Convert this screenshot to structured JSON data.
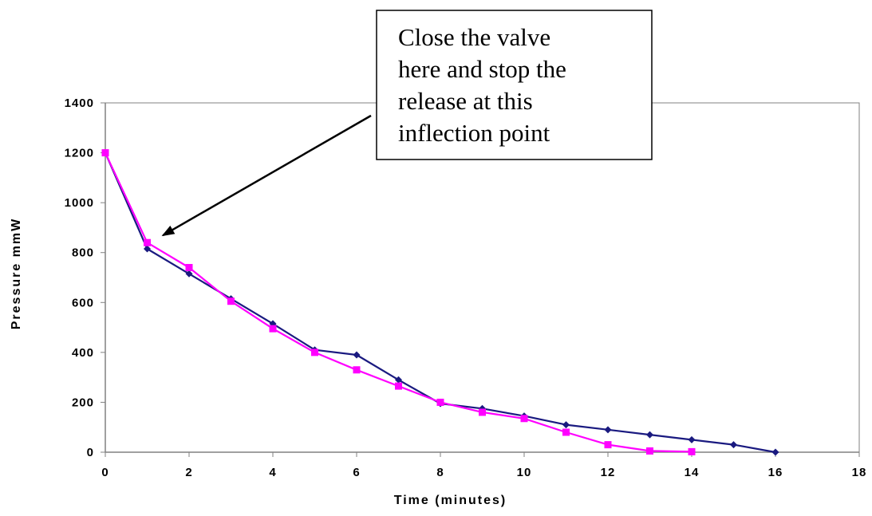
{
  "chart_data": {
    "type": "line",
    "title": "",
    "xlabel": "Time (minutes)",
    "ylabel": "Pressure mmW",
    "xlim": [
      0,
      18
    ],
    "ylim": [
      0,
      1400
    ],
    "x_ticks": [
      0,
      2,
      4,
      6,
      8,
      10,
      12,
      14,
      16,
      18
    ],
    "y_ticks": [
      0,
      200,
      400,
      600,
      800,
      1000,
      1200,
      1400
    ],
    "grid": false,
    "legend": "none",
    "series": [
      {
        "color": "#1a1a80",
        "marker": "diamond",
        "x": [
          0,
          1,
          2,
          3,
          4,
          5,
          6,
          7,
          8,
          9,
          10,
          11,
          12,
          13,
          14,
          15,
          16
        ],
        "values": [
          1200,
          815,
          715,
          615,
          515,
          410,
          390,
          290,
          195,
          175,
          145,
          110,
          90,
          70,
          50,
          30,
          0
        ]
      },
      {
        "color": "#ff00ff",
        "marker": "square",
        "x": [
          0,
          1,
          2,
          3,
          4,
          5,
          6,
          7,
          8,
          9,
          10,
          11,
          12,
          13,
          14
        ],
        "values": [
          1200,
          840,
          740,
          605,
          495,
          400,
          330,
          265,
          200,
          160,
          135,
          80,
          30,
          5,
          2
        ]
      }
    ],
    "annotations": [
      {
        "lines": [
          "Close the valve",
          "here and stop the",
          "release at this",
          "inflection point"
        ],
        "target_x": 1.3,
        "target_y": 850
      }
    ]
  },
  "colors": {
    "axis": "#808080",
    "text": "#000000",
    "callout_border": "#000000",
    "arrow": "#000000"
  }
}
